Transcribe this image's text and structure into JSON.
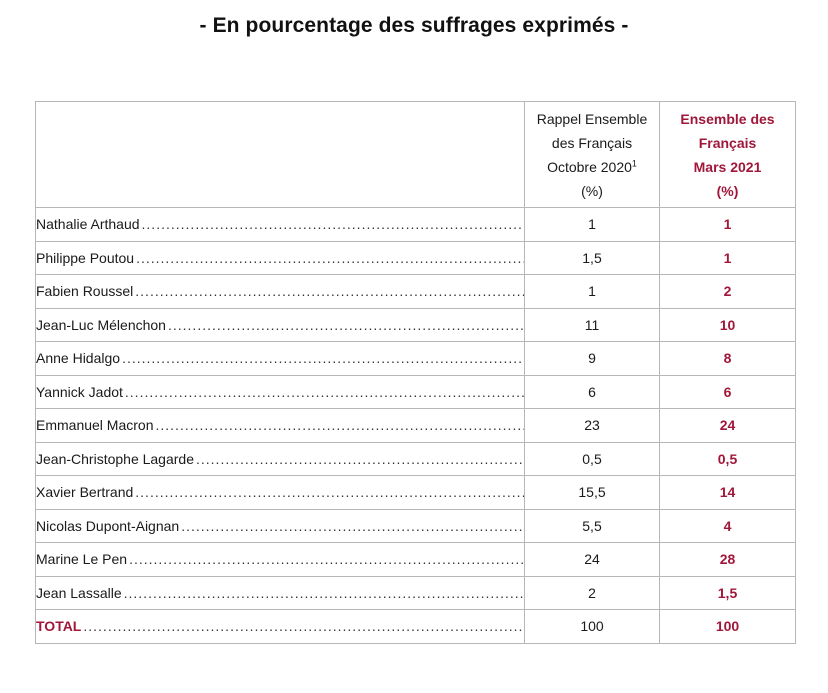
{
  "title": "- En pourcentage des suffrages exprimés -",
  "colors": {
    "accent": "#a0173a",
    "border": "#b7b7b7"
  },
  "header": {
    "col_oct_lines": [
      "Rappel Ensemble",
      "des Français",
      "Octobre 2020",
      "(%)"
    ],
    "col_oct_footnote": "1",
    "col_mar_lines": [
      "Ensemble des",
      "Français",
      "Mars 2021",
      "(%)"
    ]
  },
  "rows": [
    {
      "name": "Nathalie Arthaud",
      "oct_2020": "1",
      "mar_2021": "1"
    },
    {
      "name": "Philippe Poutou",
      "oct_2020": "1,5",
      "mar_2021": "1"
    },
    {
      "name": "Fabien Roussel",
      "oct_2020": "1",
      "mar_2021": "2"
    },
    {
      "name": "Jean-Luc Mélenchon",
      "oct_2020": "11",
      "mar_2021": "10"
    },
    {
      "name": "Anne Hidalgo",
      "oct_2020": "9",
      "mar_2021": "8"
    },
    {
      "name": "Yannick Jadot",
      "oct_2020": "6",
      "mar_2021": "6"
    },
    {
      "name": "Emmanuel Macron",
      "oct_2020": "23",
      "mar_2021": "24"
    },
    {
      "name": "Jean-Christophe Lagarde",
      "oct_2020": "0,5",
      "mar_2021": "0,5"
    },
    {
      "name": "Xavier Bertrand",
      "oct_2020": "15,5",
      "mar_2021": "14"
    },
    {
      "name": "Nicolas Dupont-Aignan",
      "oct_2020": "5,5",
      "mar_2021": "4"
    },
    {
      "name": "Marine Le Pen",
      "oct_2020": "24",
      "mar_2021": "28"
    },
    {
      "name": "Jean Lassalle",
      "oct_2020": "2",
      "mar_2021": "1,5"
    }
  ],
  "total": {
    "name": "TOTAL",
    "oct_2020": "100",
    "mar_2021": "100"
  }
}
